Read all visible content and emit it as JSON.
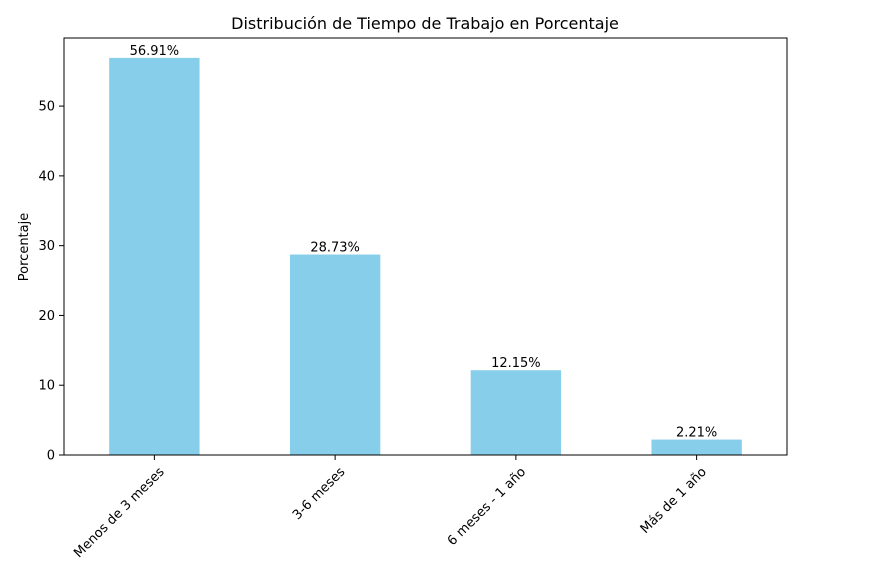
{
  "chart_data": {
    "type": "bar",
    "title": "Distribución de Tiempo de Trabajo en Porcentaje",
    "xlabel": "",
    "ylabel": "Porcentaje",
    "categories": [
      "Menos de 3 meses",
      "3-6 meses",
      "6 meses - 1 año",
      "Más de 1 año"
    ],
    "values": [
      56.91,
      28.73,
      12.15,
      2.21
    ],
    "data_labels": [
      "56.91%",
      "28.73%",
      "12.15%",
      "2.21%"
    ],
    "ylim": [
      0,
      59.76
    ],
    "yticks": [
      0,
      10,
      20,
      30,
      40,
      50
    ],
    "ytick_labels": [
      "0",
      "10",
      "20",
      "30",
      "40",
      "50"
    ],
    "grid": false,
    "bar_color": "#87CEEB"
  }
}
